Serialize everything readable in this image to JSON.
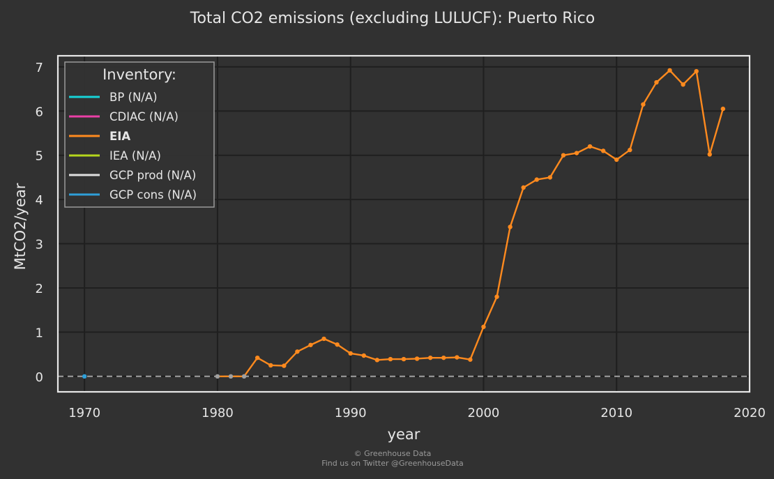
{
  "chart_data": {
    "type": "line",
    "title": "Total CO2 emissions (excluding LULUCF): Puerto Rico",
    "xlabel": "year",
    "ylabel": "MtCO2/year",
    "xlim": [
      1968,
      2020
    ],
    "ylim": [
      -0.35,
      7.25
    ],
    "xticks": [
      1970,
      1980,
      1990,
      2000,
      2010,
      2020
    ],
    "yticks": [
      0,
      1,
      2,
      3,
      4,
      5,
      6,
      7
    ],
    "grid": true,
    "zero_line": "dashed",
    "legend": {
      "title": "Inventory:",
      "placement": "top-left",
      "entries": [
        {
          "label": "BP (N/A)",
          "color": "#17d3d8",
          "bold": false
        },
        {
          "label": "CDIAC (N/A)",
          "color": "#ea3fa6",
          "bold": false
        },
        {
          "label": "EIA",
          "color": "#ff8a1e",
          "bold": true
        },
        {
          "label": "IEA (N/A)",
          "color": "#b5d61c",
          "bold": false
        },
        {
          "label": "GCP prod (N/A)",
          "color": "#e0e0e0",
          "bold": false
        },
        {
          "label": "GCP cons (N/A)",
          "color": "#2e9fd8",
          "bold": false
        }
      ]
    },
    "series": [
      {
        "name": "EIA",
        "color": "#ff8a1e",
        "x": [
          1980,
          1981,
          1982,
          1983,
          1984,
          1985,
          1986,
          1987,
          1988,
          1989,
          1990,
          1991,
          1992,
          1993,
          1994,
          1995,
          1996,
          1997,
          1998,
          1999,
          2000,
          2001,
          2002,
          2003,
          2004,
          2005,
          2006,
          2007,
          2008,
          2009,
          2010,
          2011,
          2012,
          2013,
          2014,
          2015,
          2016,
          2017,
          2018
        ],
        "y": [
          0,
          0,
          0,
          0.42,
          0.25,
          0.24,
          0.56,
          0.71,
          0.85,
          0.72,
          0.52,
          0.47,
          0.37,
          0.39,
          0.39,
          0.4,
          0.42,
          0.42,
          0.43,
          0.38,
          1.12,
          1.8,
          3.38,
          4.27,
          4.45,
          4.5,
          5.0,
          5.05,
          5.2,
          5.1,
          4.9,
          5.12,
          6.15,
          6.65,
          6.92,
          6.6,
          6.9,
          5.02,
          6.05
        ]
      },
      {
        "name": "GCP cons (N/A)",
        "color": "#2e9fd8",
        "x": [
          1970
        ],
        "y": [
          0
        ]
      }
    ]
  },
  "footer": {
    "copyright": "© Greenhouse Data",
    "twitter": "Find us on Twitter @GreenhouseData"
  }
}
